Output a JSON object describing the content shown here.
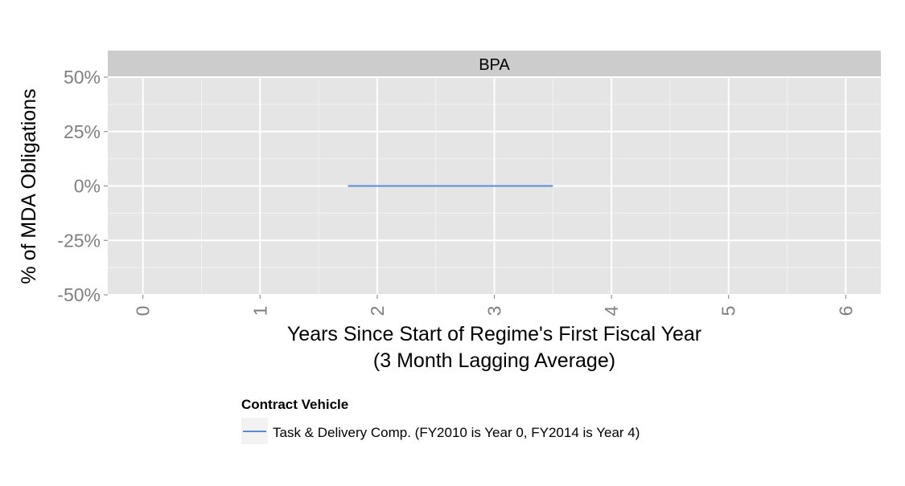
{
  "chart_data": {
    "type": "line",
    "facet_label": "BPA",
    "xlabel": "Years Since Start of Regime's First Fiscal Year",
    "xlabel_line2": "(3 Month Lagging Average)",
    "ylabel": "% of MDA Obligations",
    "xlim": [
      -0.3,
      6.3
    ],
    "ylim": [
      -0.5,
      0.5
    ],
    "x_ticks": [
      0,
      1,
      2,
      3,
      4,
      5,
      6
    ],
    "x_tick_labels": [
      "0",
      "1",
      "2",
      "3",
      "4",
      "5",
      "6"
    ],
    "y_ticks": [
      -0.5,
      -0.25,
      0,
      0.25,
      0.5
    ],
    "y_tick_labels": [
      "-50%",
      "-25%",
      "0%",
      "25%",
      "50%"
    ],
    "grid": true,
    "legend": {
      "title": "Contract Vehicle",
      "position": "bottom"
    },
    "series": [
      {
        "name": "Task & Delivery Comp. (FY2010 is Year 0, FY2014 is Year 4)",
        "color": "#5b8bd0",
        "x": [
          1.75,
          2.0,
          2.25,
          2.5,
          2.75,
          3.0,
          3.25,
          3.5
        ],
        "y": [
          0,
          0,
          0,
          0,
          0,
          0,
          0,
          0
        ]
      }
    ]
  }
}
